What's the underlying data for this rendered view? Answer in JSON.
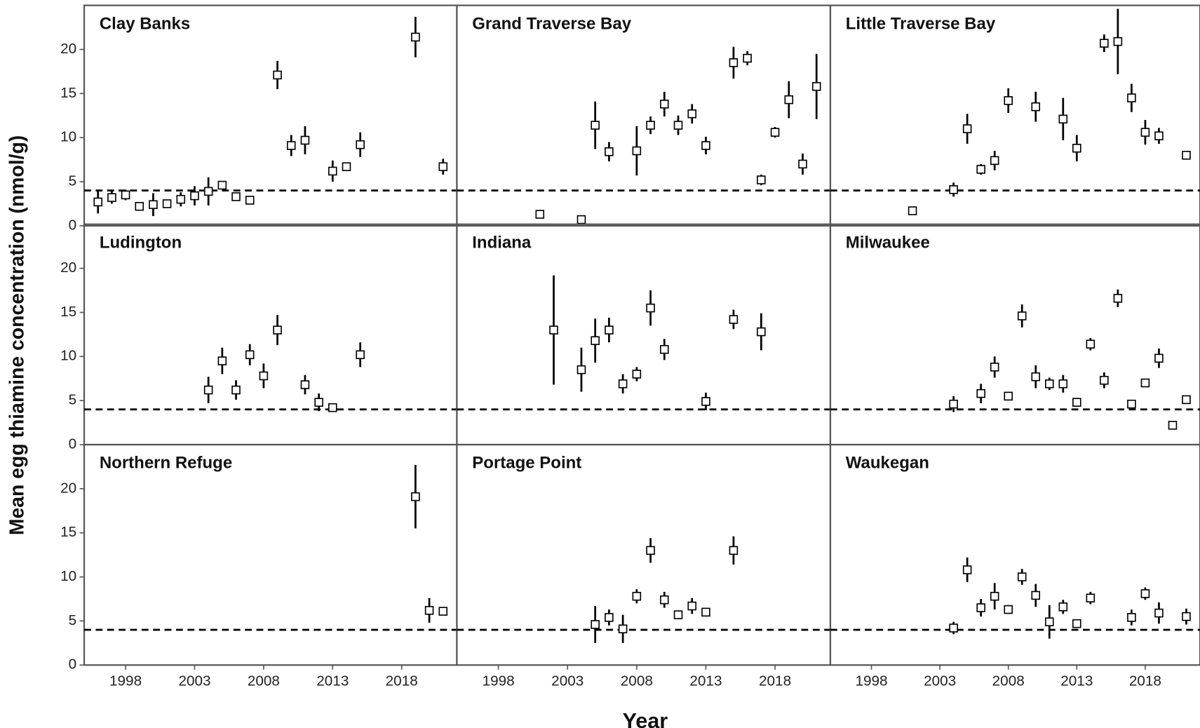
{
  "chart_data": {
    "type": "scatter",
    "xlabel": "Year",
    "ylabel": "Mean egg thiamine concentration (nmol/g)",
    "xlim": [
      1995,
      2022
    ],
    "ylim": [
      0,
      25
    ],
    "xticks": [
      1998,
      2003,
      2008,
      2013,
      2018
    ],
    "yticks": [
      0,
      5,
      10,
      15,
      20
    ],
    "reference_line": 4,
    "panels": [
      {
        "title": "Clay Banks",
        "x": [
          1996,
          1997,
          1998,
          1999,
          2000,
          2001,
          2002,
          2003,
          2004,
          2005,
          2006,
          2007,
          2009,
          2010,
          2011,
          2013,
          2014,
          2015,
          2019,
          2021
        ],
        "values": [
          2.7,
          3.2,
          3.5,
          2.2,
          2.4,
          2.5,
          3.0,
          3.4,
          3.9,
          4.6,
          3.3,
          2.9,
          17.1,
          9.1,
          9.7,
          6.2,
          6.7,
          9.2,
          21.4,
          6.7
        ],
        "errors": [
          1.3,
          0.7,
          0.6,
          0.3,
          1.3,
          0.4,
          0.8,
          1.1,
          1.6,
          0.4,
          0.4,
          0.4,
          1.6,
          1.2,
          1.6,
          1.2,
          0.4,
          1.4,
          2.3,
          0.9
        ]
      },
      {
        "title": "Grand Traverse Bay",
        "x": [
          2001,
          2004,
          2005,
          2006,
          2008,
          2009,
          2010,
          2011,
          2012,
          2013,
          2015,
          2016,
          2017,
          2018,
          2019,
          2020,
          2021
        ],
        "values": [
          1.3,
          0.7,
          11.4,
          8.4,
          8.5,
          11.4,
          13.8,
          11.4,
          12.7,
          9.1,
          18.5,
          19.0,
          5.2,
          10.6,
          14.3,
          7.0,
          15.8
        ],
        "errors": [
          0.3,
          0.3,
          2.7,
          1.1,
          2.8,
          1.0,
          1.4,
          1.1,
          1.1,
          1.0,
          1.8,
          0.8,
          0.6,
          0.6,
          2.1,
          1.2,
          3.7
        ]
      },
      {
        "title": "Little Traverse Bay",
        "x": [
          2001,
          2004,
          2005,
          2006,
          2007,
          2008,
          2010,
          2012,
          2013,
          2015,
          2016,
          2017,
          2018,
          2019,
          2021
        ],
        "values": [
          1.7,
          4.1,
          11.0,
          6.4,
          7.4,
          14.2,
          13.5,
          12.1,
          8.8,
          20.7,
          20.9,
          14.5,
          10.6,
          10.2,
          8.0
        ],
        "errors": [
          0.4,
          0.8,
          1.7,
          0.6,
          1.1,
          1.4,
          1.7,
          2.4,
          1.5,
          1.0,
          3.7,
          1.6,
          1.4,
          0.9,
          0.4
        ]
      },
      {
        "title": "Ludington",
        "x": [
          2004,
          2005,
          2006,
          2007,
          2008,
          2009,
          2011,
          2012,
          2013,
          2015
        ],
        "values": [
          6.2,
          9.5,
          6.2,
          10.2,
          7.8,
          13.0,
          6.8,
          4.8,
          4.2,
          10.2
        ],
        "errors": [
          1.5,
          1.5,
          1.1,
          1.2,
          1.4,
          1.7,
          1.1,
          1.0,
          0.4,
          1.4
        ]
      },
      {
        "title": "Indiana",
        "x": [
          2002,
          2004,
          2005,
          2006,
          2007,
          2008,
          2009,
          2010,
          2013,
          2015,
          2017
        ],
        "values": [
          13.0,
          8.5,
          11.8,
          13.0,
          6.9,
          8.0,
          15.5,
          10.8,
          4.9,
          14.2,
          12.8
        ],
        "errors": [
          6.2,
          2.5,
          2.5,
          1.4,
          1.1,
          0.8,
          2.0,
          1.2,
          1.0,
          1.1,
          2.1
        ]
      },
      {
        "title": "Milwaukee",
        "x": [
          2004,
          2006,
          2007,
          2008,
          2009,
          2010,
          2011,
          2012,
          2013,
          2014,
          2015,
          2016,
          2017,
          2018,
          2019,
          2020,
          2021
        ],
        "values": [
          4.6,
          5.8,
          8.8,
          5.5,
          14.6,
          7.7,
          6.9,
          6.9,
          4.8,
          11.4,
          7.3,
          16.6,
          4.6,
          7.0,
          9.8,
          2.2,
          5.1
        ],
        "errors": [
          0.9,
          1.1,
          1.2,
          0.5,
          1.3,
          1.3,
          0.7,
          1.0,
          0.5,
          0.7,
          0.9,
          1.0,
          0.4,
          0.4,
          1.1,
          0.3,
          0.4
        ]
      },
      {
        "title": "Northern Refuge",
        "x": [
          2019,
          2020,
          2021
        ],
        "values": [
          19.1,
          6.2,
          6.1
        ],
        "errors": [
          3.6,
          1.4,
          0.4
        ]
      },
      {
        "title": "Portage Point",
        "x": [
          2005,
          2006,
          2007,
          2008,
          2009,
          2010,
          2011,
          2012,
          2013,
          2015
        ],
        "values": [
          4.6,
          5.4,
          4.1,
          7.8,
          13.0,
          7.4,
          5.7,
          6.7,
          6.0,
          13.0
        ],
        "errors": [
          2.1,
          0.9,
          1.6,
          0.8,
          1.4,
          0.9,
          0.5,
          0.9,
          0.5,
          1.6
        ]
      },
      {
        "title": "Waukegan",
        "x": [
          2004,
          2005,
          2006,
          2007,
          2008,
          2009,
          2010,
          2011,
          2012,
          2013,
          2014,
          2017,
          2018,
          2019,
          2021
        ],
        "values": [
          4.2,
          10.8,
          6.5,
          7.8,
          6.3,
          10.0,
          7.9,
          4.9,
          6.6,
          4.7,
          7.6,
          5.4,
          8.1,
          5.9,
          5.5
        ],
        "errors": [
          0.7,
          1.4,
          1.0,
          1.5,
          0.5,
          0.9,
          1.3,
          1.9,
          0.8,
          0.4,
          0.7,
          0.9,
          0.7,
          1.2,
          0.9
        ]
      }
    ]
  }
}
